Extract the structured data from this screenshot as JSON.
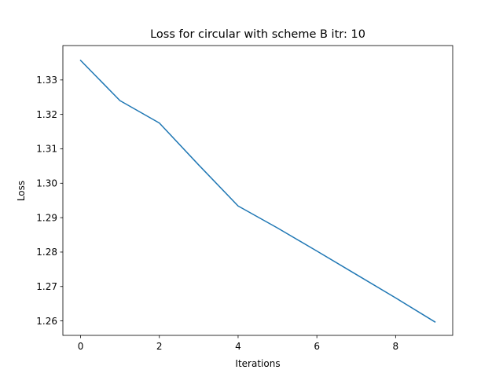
{
  "chart_data": {
    "type": "line",
    "title": "Loss for circular with scheme B itr: 10",
    "xlabel": "Iterations",
    "ylabel": "Loss",
    "xlim": [
      -0.45,
      9.45
    ],
    "ylim": [
      1.2558,
      1.34
    ],
    "xticks": [
      0,
      2,
      4,
      6,
      8
    ],
    "yticks": [
      1.26,
      1.27,
      1.28,
      1.29,
      1.3,
      1.31,
      1.32,
      1.33
    ],
    "xtick_labels": [
      "0",
      "2",
      "4",
      "6",
      "8"
    ],
    "ytick_labels": [
      "1.26",
      "1.27",
      "1.28",
      "1.29",
      "1.30",
      "1.31",
      "1.32",
      "1.33"
    ],
    "grid": false,
    "legend": "none",
    "series": [
      {
        "color": "#1f77b4",
        "x": [
          0,
          1,
          2,
          3,
          4,
          5,
          6,
          7,
          8,
          9
        ],
        "y": [
          1.3357,
          1.324,
          1.3175,
          1.3053,
          1.2934,
          1.287,
          1.2803,
          1.2735,
          1.2667,
          1.2597
        ]
      }
    ]
  }
}
